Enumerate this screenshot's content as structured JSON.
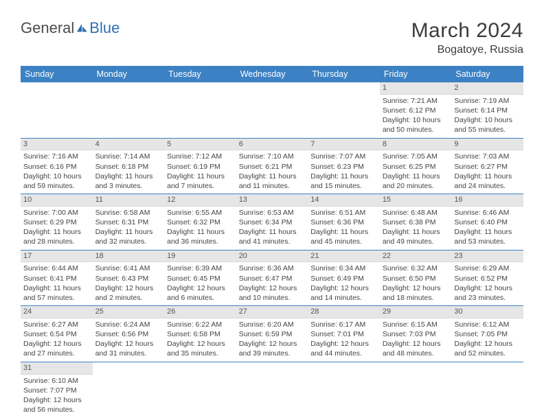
{
  "logo": {
    "word1": "General",
    "word2": "Blue",
    "color1": "#4b4b4b",
    "color2": "#2e6fb2"
  },
  "title": "March 2024",
  "location": "Bogatoye, Russia",
  "header_bg": "#3b81c4",
  "daynum_bg": "#e6e6e6",
  "border_color": "#3b81c4",
  "weekdays": [
    "Sunday",
    "Monday",
    "Tuesday",
    "Wednesday",
    "Thursday",
    "Friday",
    "Saturday"
  ],
  "days": {
    "1": {
      "sunrise": "7:21 AM",
      "sunset": "6:12 PM",
      "daylight": "10 hours and 50 minutes."
    },
    "2": {
      "sunrise": "7:19 AM",
      "sunset": "6:14 PM",
      "daylight": "10 hours and 55 minutes."
    },
    "3": {
      "sunrise": "7:16 AM",
      "sunset": "6:16 PM",
      "daylight": "10 hours and 59 minutes."
    },
    "4": {
      "sunrise": "7:14 AM",
      "sunset": "6:18 PM",
      "daylight": "11 hours and 3 minutes."
    },
    "5": {
      "sunrise": "7:12 AM",
      "sunset": "6:19 PM",
      "daylight": "11 hours and 7 minutes."
    },
    "6": {
      "sunrise": "7:10 AM",
      "sunset": "6:21 PM",
      "daylight": "11 hours and 11 minutes."
    },
    "7": {
      "sunrise": "7:07 AM",
      "sunset": "6:23 PM",
      "daylight": "11 hours and 15 minutes."
    },
    "8": {
      "sunrise": "7:05 AM",
      "sunset": "6:25 PM",
      "daylight": "11 hours and 20 minutes."
    },
    "9": {
      "sunrise": "7:03 AM",
      "sunset": "6:27 PM",
      "daylight": "11 hours and 24 minutes."
    },
    "10": {
      "sunrise": "7:00 AM",
      "sunset": "6:29 PM",
      "daylight": "11 hours and 28 minutes."
    },
    "11": {
      "sunrise": "6:58 AM",
      "sunset": "6:31 PM",
      "daylight": "11 hours and 32 minutes."
    },
    "12": {
      "sunrise": "6:55 AM",
      "sunset": "6:32 PM",
      "daylight": "11 hours and 36 minutes."
    },
    "13": {
      "sunrise": "6:53 AM",
      "sunset": "6:34 PM",
      "daylight": "11 hours and 41 minutes."
    },
    "14": {
      "sunrise": "6:51 AM",
      "sunset": "6:36 PM",
      "daylight": "11 hours and 45 minutes."
    },
    "15": {
      "sunrise": "6:48 AM",
      "sunset": "6:38 PM",
      "daylight": "11 hours and 49 minutes."
    },
    "16": {
      "sunrise": "6:46 AM",
      "sunset": "6:40 PM",
      "daylight": "11 hours and 53 minutes."
    },
    "17": {
      "sunrise": "6:44 AM",
      "sunset": "6:41 PM",
      "daylight": "11 hours and 57 minutes."
    },
    "18": {
      "sunrise": "6:41 AM",
      "sunset": "6:43 PM",
      "daylight": "12 hours and 2 minutes."
    },
    "19": {
      "sunrise": "6:39 AM",
      "sunset": "6:45 PM",
      "daylight": "12 hours and 6 minutes."
    },
    "20": {
      "sunrise": "6:36 AM",
      "sunset": "6:47 PM",
      "daylight": "12 hours and 10 minutes."
    },
    "21": {
      "sunrise": "6:34 AM",
      "sunset": "6:49 PM",
      "daylight": "12 hours and 14 minutes."
    },
    "22": {
      "sunrise": "6:32 AM",
      "sunset": "6:50 PM",
      "daylight": "12 hours and 18 minutes."
    },
    "23": {
      "sunrise": "6:29 AM",
      "sunset": "6:52 PM",
      "daylight": "12 hours and 23 minutes."
    },
    "24": {
      "sunrise": "6:27 AM",
      "sunset": "6:54 PM",
      "daylight": "12 hours and 27 minutes."
    },
    "25": {
      "sunrise": "6:24 AM",
      "sunset": "6:56 PM",
      "daylight": "12 hours and 31 minutes."
    },
    "26": {
      "sunrise": "6:22 AM",
      "sunset": "6:58 PM",
      "daylight": "12 hours and 35 minutes."
    },
    "27": {
      "sunrise": "6:20 AM",
      "sunset": "6:59 PM",
      "daylight": "12 hours and 39 minutes."
    },
    "28": {
      "sunrise": "6:17 AM",
      "sunset": "7:01 PM",
      "daylight": "12 hours and 44 minutes."
    },
    "29": {
      "sunrise": "6:15 AM",
      "sunset": "7:03 PM",
      "daylight": "12 hours and 48 minutes."
    },
    "30": {
      "sunrise": "6:12 AM",
      "sunset": "7:05 PM",
      "daylight": "12 hours and 52 minutes."
    },
    "31": {
      "sunrise": "6:10 AM",
      "sunset": "7:07 PM",
      "daylight": "12 hours and 56 minutes."
    }
  },
  "grid": [
    [
      null,
      null,
      null,
      null,
      null,
      "1",
      "2"
    ],
    [
      "3",
      "4",
      "5",
      "6",
      "7",
      "8",
      "9"
    ],
    [
      "10",
      "11",
      "12",
      "13",
      "14",
      "15",
      "16"
    ],
    [
      "17",
      "18",
      "19",
      "20",
      "21",
      "22",
      "23"
    ],
    [
      "24",
      "25",
      "26",
      "27",
      "28",
      "29",
      "30"
    ],
    [
      "31",
      null,
      null,
      null,
      null,
      null,
      null
    ]
  ]
}
